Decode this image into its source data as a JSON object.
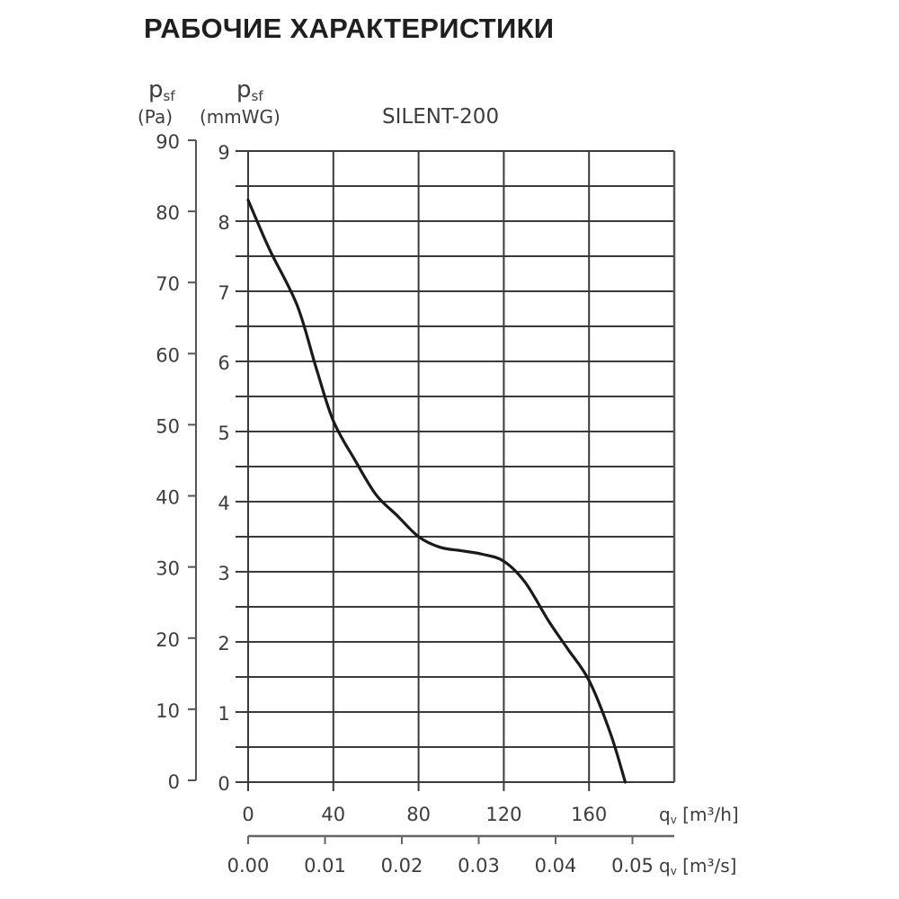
{
  "header": {
    "title": "РАБОЧИЕ ХАРАКТЕРИСТИКИ"
  },
  "chart_data": {
    "type": "line",
    "title": "SILENT-200",
    "y_axes": [
      {
        "symbol": "p",
        "subscript": "sf",
        "unit": "(Pa)",
        "ticks": [
          0,
          10,
          20,
          30,
          40,
          50,
          60,
          70,
          80,
          90
        ],
        "range": [
          0,
          90
        ]
      },
      {
        "symbol": "p",
        "subscript": "sf",
        "unit": "(mmWG)",
        "ticks": [
          0,
          1,
          2,
          3,
          4,
          5,
          6,
          7,
          8,
          9
        ],
        "range": [
          0,
          9
        ],
        "minor_step": 0.5
      }
    ],
    "x_axes": [
      {
        "symbol": "q",
        "subscript": "v",
        "unit": "[m³/h]",
        "ticks": [
          0,
          40,
          80,
          120,
          160
        ],
        "range": [
          0,
          200
        ]
      },
      {
        "symbol": "q",
        "subscript": "v",
        "unit": "[m³/s]",
        "ticks": [
          "0.00",
          "0.01",
          "0.02",
          "0.03",
          "0.04",
          "0.05"
        ]
      }
    ],
    "xlabel": "qv [m³/h]",
    "xlabel2": "qv [m³/s]",
    "ylabel": "psf (Pa)",
    "ylabel2": "psf (mmWG)",
    "grid": true,
    "legend": null,
    "series": [
      {
        "name": "SILENT-200",
        "x": [
          0,
          10,
          23,
          32,
          40,
          50,
          60,
          70,
          80,
          90,
          100,
          110,
          120,
          130,
          141,
          150,
          160,
          170,
          177
        ],
        "y": [
          8.3,
          7.6,
          6.8,
          5.9,
          5.15,
          4.6,
          4.1,
          3.8,
          3.5,
          3.35,
          3.3,
          3.25,
          3.15,
          2.85,
          2.3,
          1.9,
          1.45,
          0.7,
          0.0
        ]
      }
    ]
  },
  "labels": {
    "pa_symbol": "p",
    "pa_sub": "sf",
    "pa_unit": "(Pa)",
    "mm_symbol": "p",
    "mm_sub": "sf",
    "mm_unit": "(mmWG)",
    "model": "SILENT-200",
    "x1_symbol": "q",
    "x1_sub": "v",
    "x1_unit": " [m³/h]",
    "x2_symbol": "q",
    "x2_sub": "v",
    "x2_unit": " [m³/s]"
  }
}
